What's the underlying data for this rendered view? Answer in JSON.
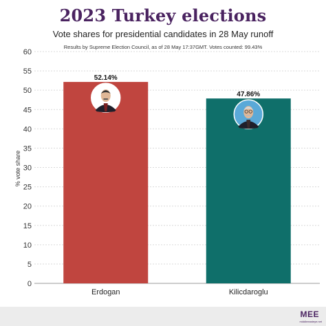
{
  "header": {
    "title": "2023 Turkey elections",
    "subtitle": "Vote shares for presidential candidates in 28 May runoff",
    "note": "Results by Supreme Election Council, as of 28 May 17:37GMT. Votes counted: 99.43%"
  },
  "footer": {
    "logo_text": "MEE",
    "logo_sub": "middleeasteye.net"
  },
  "chart_data": {
    "type": "bar",
    "title": "2023 Turkey elections",
    "subtitle": "Vote shares for presidential candidates in 28 May runoff",
    "categories": [
      "Erdogan",
      "Kilicdaroglu"
    ],
    "values": [
      52.14,
      47.86
    ],
    "value_labels": [
      "52.14%",
      "47.86%"
    ],
    "xlabel": "",
    "ylabel": "% vote share",
    "ylim": [
      0,
      60
    ],
    "yticks": [
      0,
      5,
      10,
      15,
      20,
      25,
      30,
      35,
      40,
      45,
      50,
      55,
      60
    ],
    "grid": true,
    "colors": [
      "#c0453f",
      "#0f6f6a"
    ],
    "icons": [
      "erdogan-portrait-icon",
      "kilicdaroglu-portrait-icon"
    ]
  }
}
